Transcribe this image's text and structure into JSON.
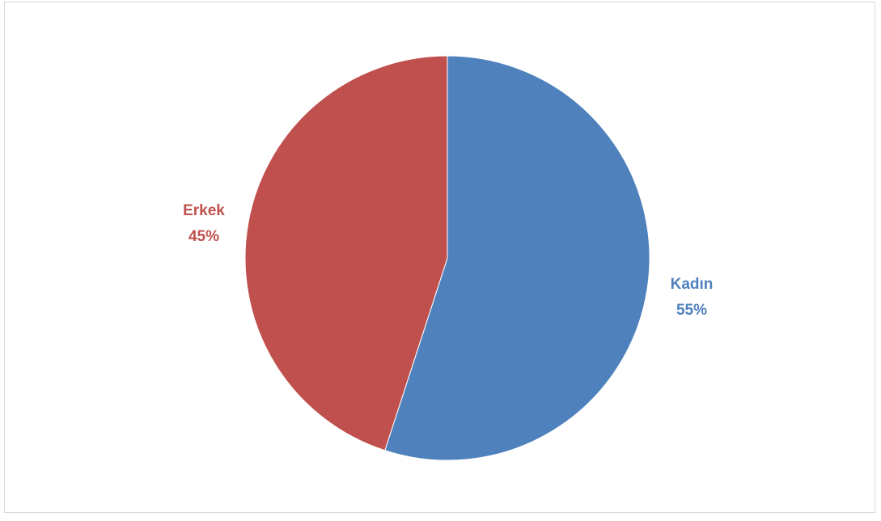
{
  "chart_data": {
    "type": "pie",
    "title": "",
    "slices": [
      {
        "label": "Kadın",
        "value": 55,
        "percent_label": "55%",
        "color": "#4F81BD"
      },
      {
        "label": "Erkek",
        "value": 45,
        "percent_label": "45%",
        "color": "#C0504D"
      }
    ],
    "start_angle_deg": 0,
    "direction": "clockwise",
    "legend": "none",
    "data_labels": "outside"
  }
}
